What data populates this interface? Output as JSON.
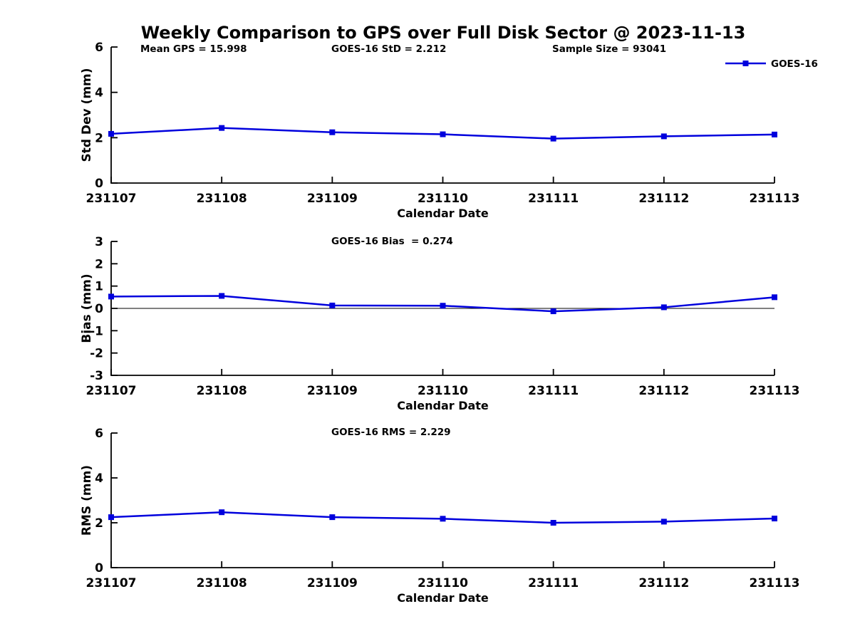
{
  "title": "Weekly Comparison to GPS over Full Disk Sector @ 2023-11-13",
  "colors": {
    "series": "#0000dd",
    "axis": "#000000",
    "background": "#ffffff"
  },
  "legend": {
    "label": "GOES-16",
    "position": "top-right"
  },
  "chart_data": [
    {
      "type": "line",
      "categories": [
        "231107",
        "231108",
        "231109",
        "231110",
        "231111",
        "231112",
        "231113"
      ],
      "series": [
        {
          "name": "GOES-16",
          "values": [
            2.17,
            2.43,
            2.24,
            2.15,
            1.96,
            2.06,
            2.14
          ]
        }
      ],
      "annotations": [
        "Mean GPS = 15.998",
        "GOES-16 StD = 2.212",
        "Sample Size = 93041"
      ],
      "xlabel": "Calendar Date",
      "ylabel": "Std Dev (mm)",
      "ylim": [
        0,
        6
      ],
      "yticks": [
        0,
        2,
        4,
        6
      ],
      "zero_line": false,
      "grid": false,
      "show_legend": true
    },
    {
      "type": "line",
      "categories": [
        "231107",
        "231108",
        "231109",
        "231110",
        "231111",
        "231112",
        "231113"
      ],
      "series": [
        {
          "name": "GOES-16",
          "values": [
            0.53,
            0.56,
            0.13,
            0.12,
            -0.13,
            0.05,
            0.5
          ]
        }
      ],
      "annotations": [
        "GOES-16 Bias  = 0.274"
      ],
      "xlabel": "Calendar Date",
      "ylabel": "Bias (mm)",
      "ylim": [
        -3,
        3
      ],
      "yticks": [
        -3,
        -2,
        -1,
        0,
        1,
        2,
        3
      ],
      "zero_line": true,
      "grid": false,
      "show_legend": false
    },
    {
      "type": "line",
      "categories": [
        "231107",
        "231108",
        "231109",
        "231110",
        "231111",
        "231112",
        "231113"
      ],
      "series": [
        {
          "name": "GOES-16",
          "values": [
            2.25,
            2.47,
            2.25,
            2.18,
            2.0,
            2.05,
            2.19
          ]
        }
      ],
      "annotations": [
        "GOES-16 RMS = 2.229"
      ],
      "xlabel": "Calendar Date",
      "ylabel": "RMS (mm)",
      "ylim": [
        0,
        6
      ],
      "yticks": [
        0,
        2,
        4,
        6
      ],
      "zero_line": false,
      "grid": false,
      "show_legend": false
    }
  ]
}
